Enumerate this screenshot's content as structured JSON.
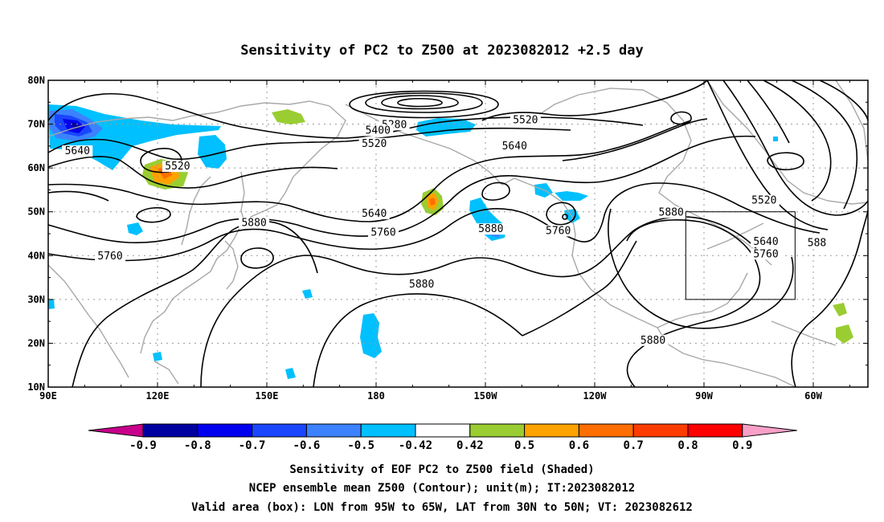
{
  "title": "Sensitivity of PC2 to Z500 at 2023082012 +2.5 day",
  "axes": {
    "lon_labels": [
      "90E",
      "120E",
      "150E",
      "180",
      "150W",
      "120W",
      "90W",
      "60W"
    ],
    "lat_labels": [
      "80N",
      "70N",
      "60N",
      "50N",
      "40N",
      "30N",
      "20N",
      "10N"
    ]
  },
  "contour_labels": [
    {
      "text": "5280",
      "lon": 185,
      "lat": 69.5
    },
    {
      "text": "5400",
      "lon": 180.5,
      "lat": 68.2
    },
    {
      "text": "5520",
      "lon": 221,
      "lat": 70.6
    },
    {
      "text": "5520",
      "lon": 179.5,
      "lat": 65.2
    },
    {
      "text": "5520",
      "lon": 125.5,
      "lat": 60.0
    },
    {
      "text": "5640",
      "lon": 98,
      "lat": 63.5
    },
    {
      "text": "5640",
      "lon": 218,
      "lat": 64.6
    },
    {
      "text": "5640",
      "lon": 179.5,
      "lat": 49.2
    },
    {
      "text": "5640",
      "lon": 287,
      "lat": 42.8
    },
    {
      "text": "5520",
      "lon": 286.5,
      "lat": 52.2
    },
    {
      "text": "5760",
      "lon": 182,
      "lat": 44.9
    },
    {
      "text": "5760",
      "lon": 230,
      "lat": 45.3
    },
    {
      "text": "5760",
      "lon": 107,
      "lat": 39.5
    },
    {
      "text": "5760",
      "lon": 287,
      "lat": 40.0
    },
    {
      "text": "5880",
      "lon": 146.5,
      "lat": 47.1
    },
    {
      "text": "5880",
      "lon": 211.5,
      "lat": 45.7
    },
    {
      "text": "5880",
      "lon": 261,
      "lat": 49.5
    },
    {
      "text": "5880",
      "lon": 192.5,
      "lat": 33.1
    },
    {
      "text": "5880",
      "lon": 256,
      "lat": 20.3
    },
    {
      "text": "588",
      "lon": 301,
      "lat": 42.5
    }
  ],
  "colorbar": {
    "ticks": [
      "-0.9",
      "-0.8",
      "-0.7",
      "-0.6",
      "-0.5",
      "-0.42",
      "0.42",
      "0.5",
      "0.6",
      "0.7",
      "0.8",
      "0.9"
    ],
    "colors": [
      "#0000a0",
      "#0000ee",
      "#1a46ff",
      "#3c82ff",
      "#00c0ff",
      "#ffffff",
      "#9acd32",
      "#ffa200",
      "#ff6e00",
      "#ff3c00",
      "#ff0000"
    ],
    "low_color": "#c8008c",
    "high_color": "#f8a0c8"
  },
  "valid_box": {
    "lon_min": 265,
    "lon_max": 295,
    "lat_min": 30,
    "lat_max": 50
  },
  "captions": [
    "Sensitivity of EOF PC2 to Z500 field (Shaded)",
    "NCEP ensemble mean Z500 (Contour); unit(m); IT:2023082012",
    "Valid area (box): LON from 95W to 65W, LAT from 30N to 50N; VT: 2023082612"
  ]
}
